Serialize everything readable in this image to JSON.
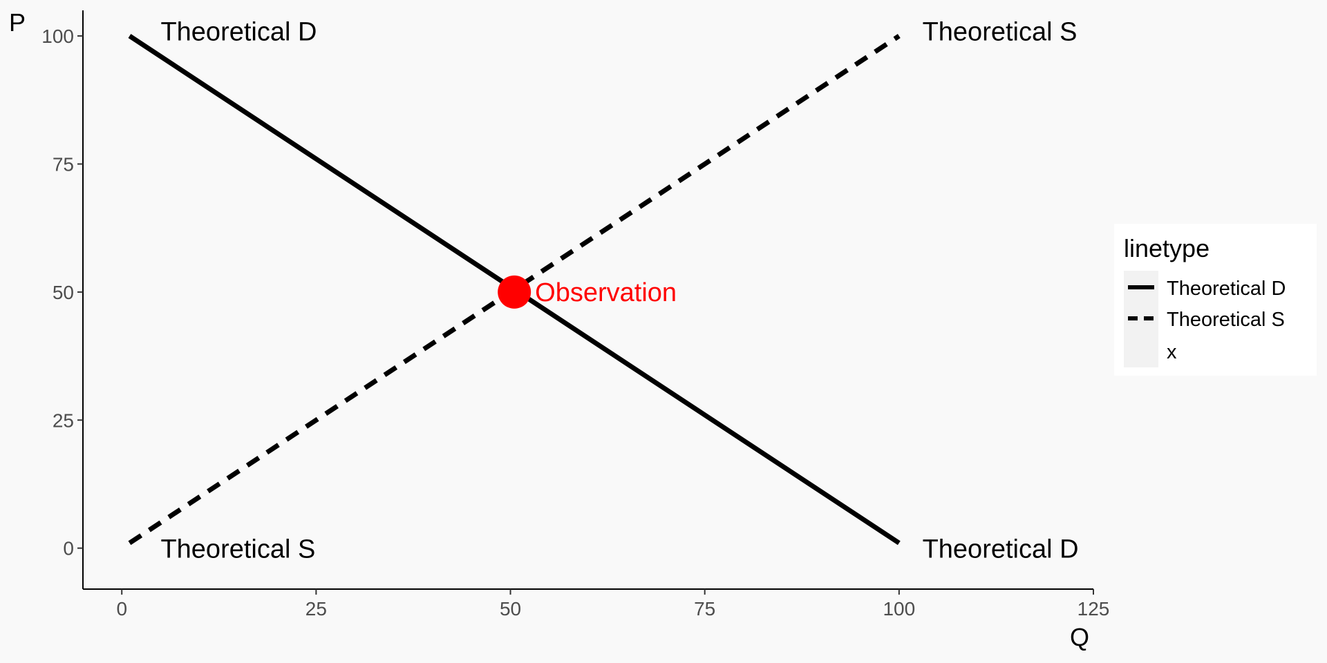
{
  "chart_data": {
    "type": "line",
    "xlabel": "Q",
    "ylabel": "P",
    "xlim": [
      -5,
      125
    ],
    "ylim": [
      -8,
      105
    ],
    "xticks": [
      0,
      25,
      50,
      75,
      100,
      125
    ],
    "yticks": [
      0,
      25,
      50,
      75,
      100
    ],
    "grid": false,
    "legend": {
      "title": "linetype",
      "placement": "right",
      "entries": [
        {
          "label": "Theoretical D",
          "style": "solid"
        },
        {
          "label": "Theoretical S",
          "style": "dashed"
        },
        {
          "label": "x",
          "style": "none"
        }
      ]
    },
    "series": [
      {
        "name": "Theoretical D",
        "style": "solid",
        "x": [
          1,
          100
        ],
        "y": [
          100,
          1
        ],
        "color": "#000000"
      },
      {
        "name": "Theoretical S",
        "style": "dashed",
        "x": [
          1,
          100
        ],
        "y": [
          1,
          100
        ],
        "color": "#000000"
      }
    ],
    "point": {
      "label": "Observation",
      "x": 50.5,
      "y": 50,
      "color": "#ff0000"
    },
    "annotations": [
      {
        "text": "Theoretical D",
        "x": 5,
        "y": 101,
        "anchor": "start"
      },
      {
        "text": "Theoretical S",
        "x": 5,
        "y": 0,
        "anchor": "start"
      },
      {
        "text": "Theoretical S",
        "x": 103,
        "y": 101,
        "anchor": "start"
      },
      {
        "text": "Theoretical D",
        "x": 103,
        "y": 0,
        "anchor": "start"
      }
    ]
  }
}
